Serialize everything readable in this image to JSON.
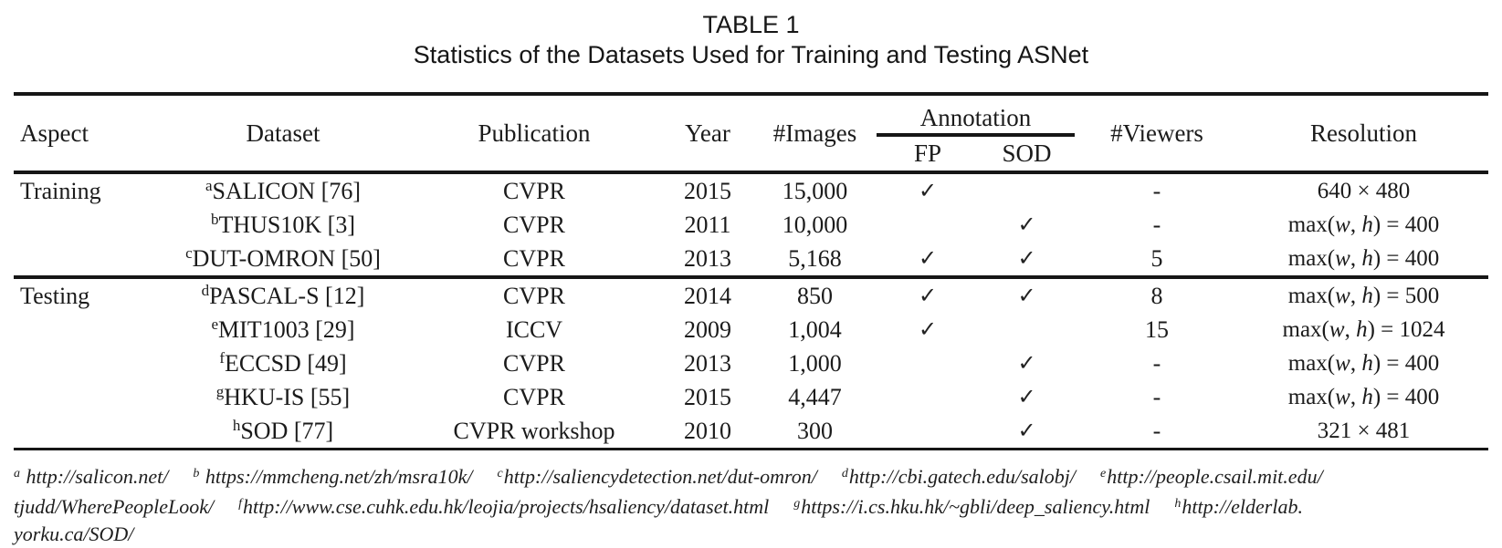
{
  "title": {
    "line1": "TABLE 1",
    "line2": "Statistics of the Datasets Used for Training and Testing ASNet"
  },
  "header": {
    "aspect": "Aspect",
    "dataset": "Dataset",
    "publication": "Publication",
    "year": "Year",
    "images": "#Images",
    "annotation": "Annotation",
    "fp": "FP",
    "sod": "SOD",
    "viewers": "#Viewers",
    "resolution": "Resolution"
  },
  "symbols": {
    "check": "✓",
    "dash": "-"
  },
  "sections": [
    {
      "aspect": "Training",
      "rows": [
        {
          "sup": "a",
          "dataset": "SALICON [76]",
          "publication": "CVPR",
          "year": "2015",
          "images": "15,000",
          "fp": "✓",
          "sod": "",
          "viewers": "-",
          "resolution": "640 × 480"
        },
        {
          "sup": "b",
          "dataset": "THUS10K  [3]",
          "publication": "CVPR",
          "year": "2011",
          "images": "10,000",
          "fp": "",
          "sod": "✓",
          "viewers": "-",
          "resolution": "max(w, h) = 400"
        },
        {
          "sup": "c",
          "dataset": "DUT-OMRON [50]",
          "publication": "CVPR",
          "year": "2013",
          "images": "5,168",
          "fp": "✓",
          "sod": "✓",
          "viewers": "5",
          "resolution": "max(w, h) = 400"
        }
      ]
    },
    {
      "aspect": "Testing",
      "rows": [
        {
          "sup": "d",
          "dataset": "PASCAL-S [12]",
          "publication": "CVPR",
          "year": "2014",
          "images": "850",
          "fp": "✓",
          "sod": "✓",
          "viewers": "8",
          "resolution": "max(w, h) = 500"
        },
        {
          "sup": "e",
          "dataset": "MIT1003 [29]",
          "publication": "ICCV",
          "year": "2009",
          "images": "1,004",
          "fp": "✓",
          "sod": "",
          "viewers": "15",
          "resolution": "max(w, h) = 1024"
        },
        {
          "sup": "f",
          "dataset": "ECCSD [49]",
          "publication": "CVPR",
          "year": "2013",
          "images": "1,000",
          "fp": "",
          "sod": "✓",
          "viewers": "-",
          "resolution": "max(w, h) = 400"
        },
        {
          "sup": "g",
          "dataset": "HKU-IS [55]",
          "publication": "CVPR",
          "year": "2015",
          "images": "4,447",
          "fp": "",
          "sod": "✓",
          "viewers": "-",
          "resolution": "max(w, h) = 400"
        },
        {
          "sup": "h",
          "dataset": "SOD [77]",
          "publication": "CVPR workshop",
          "year": "2010",
          "images": "300",
          "fp": "",
          "sod": "✓",
          "viewers": "-",
          "resolution": "321 × 481"
        }
      ]
    }
  ],
  "footnotes": {
    "lines": [
      {
        "segments": [
          {
            "sup": "a",
            "text": " http://salicon.net/"
          },
          {
            "sup": "b",
            "text": " https://mmcheng.net/zh/msra10k/"
          },
          {
            "sup": "c",
            "text": "http://saliencydetection.net/dut-omron/"
          },
          {
            "sup": "d",
            "text": "http://cbi.gatech.edu/salobj/"
          },
          {
            "sup": "e",
            "text": "http://people.csail.mit.edu/"
          }
        ]
      },
      {
        "segments": [
          {
            "text": "tjudd/WherePeopleLook/"
          },
          {
            "sup": "f",
            "text": "http://www.cse.cuhk.edu.hk/leojia/projects/hsaliency/dataset.html"
          },
          {
            "sup": "g",
            "text": "https://i.cs.hku.hk/~gbli/deep_saliency.html"
          },
          {
            "sup": "h",
            "text": "http://elderlab."
          }
        ]
      },
      {
        "segments": [
          {
            "text": "yorku.ca/SOD/"
          }
        ]
      }
    ]
  }
}
